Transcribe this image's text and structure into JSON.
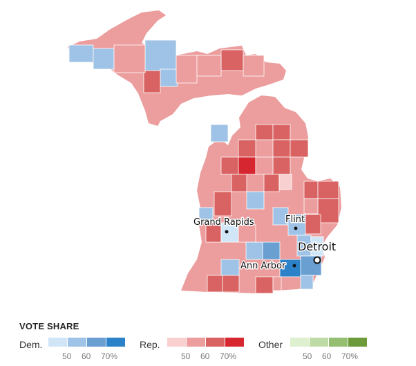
{
  "cities": [
    {
      "id": "grand-rapids",
      "name": "Grand Rapids"
    },
    {
      "id": "flint",
      "name": "Flint"
    },
    {
      "id": "detroit",
      "name": "Detroit"
    },
    {
      "id": "ann-arbor",
      "name": "Ann Arbor"
    }
  ],
  "legend": {
    "title": "VOTE SHARE",
    "groups": [
      {
        "id": "dem",
        "label": "Dem.",
        "colors": [
          "#d0e6f7",
          "#9fc3e7",
          "#6a9fd2",
          "#2b82c9"
        ],
        "ticks": [
          "50",
          "60",
          "70%"
        ]
      },
      {
        "id": "rep",
        "label": "Rep.",
        "colors": [
          "#f9d0d0",
          "#ec9d9d",
          "#d96262",
          "#d6262f"
        ],
        "ticks": [
          "50",
          "60",
          "70%"
        ]
      },
      {
        "id": "other",
        "label": "Other",
        "colors": [
          "#def0cf",
          "#bedba6",
          "#95be70",
          "#6d9a3b"
        ],
        "ticks": [
          "50",
          "60",
          "70%"
        ]
      }
    ]
  },
  "colors": {
    "dem1": "#d0e6f7",
    "dem2": "#9fc3e7",
    "dem3": "#6a9fd2",
    "dem4": "#2b82c9",
    "rep1": "#f9d0d0",
    "rep2": "#ec9d9d",
    "rep3": "#d96262",
    "rep4": "#d6262f"
  }
}
